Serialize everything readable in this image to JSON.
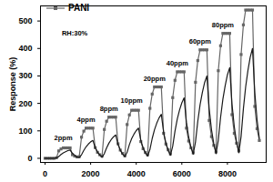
{
  "chart_data": {
    "type": "line",
    "y_label": "Response (%)",
    "x": [
      0,
      100,
      200,
      300,
      400,
      500,
      600,
      700,
      800,
      900,
      1000,
      1100,
      1200,
      1300,
      1400,
      1500,
      1600,
      1700,
      1800,
      1900,
      2000,
      2100,
      2200,
      2300,
      2400,
      2500,
      2600,
      2700,
      2800,
      2900,
      3000,
      3100,
      3200,
      3300,
      3400,
      3500,
      3600,
      3700,
      3800,
      3900,
      4000,
      4100,
      4200,
      4300,
      4400,
      4500,
      4600,
      4700,
      4800,
      4900,
      5000,
      5100,
      5200,
      5300,
      5400,
      5500,
      5600,
      5700,
      5800,
      5900,
      6000,
      6100,
      6200,
      6300,
      6400,
      6500,
      6600,
      6700,
      6800,
      6900,
      7000,
      7100,
      7200,
      7300,
      7400,
      7500,
      7600,
      7700,
      7800,
      7900,
      8000,
      8100,
      8200,
      8300,
      8400,
      8500,
      8600,
      8700,
      8800,
      8900,
      9000,
      9100,
      9200,
      9300,
      9400
    ],
    "series": [
      {
        "name": "PANI",
        "color": "#666666",
        "marker": "square",
        "line_style": "solid",
        "values": [
          0,
          0,
          0,
          0,
          0,
          2,
          27,
          34,
          38,
          38,
          38,
          38,
          13,
          8,
          5,
          6,
          77,
          99,
          110,
          110,
          110,
          110,
          39,
          22,
          13,
          8,
          105,
          135,
          150,
          150,
          150,
          150,
          53,
          30,
          18,
          9,
          123,
          158,
          175,
          175,
          175,
          175,
          61,
          35,
          21,
          13,
          182,
          234,
          260,
          260,
          260,
          260,
          91,
          52,
          31,
          16,
          221,
          284,
          315,
          315,
          315,
          315,
          110,
          63,
          38,
          20,
          277,
          356,
          395,
          395,
          395,
          395,
          138,
          79,
          47,
          23,
          319,
          410,
          455,
          455,
          455,
          455,
          159,
          91,
          55,
          27,
          378,
          486,
          540,
          540,
          540,
          540,
          189,
          108,
          65
        ]
      },
      {
        "name": null,
        "color": "#1a1a1a",
        "marker": "none",
        "line_style": "solid",
        "values": [
          0,
          0,
          0,
          0,
          0,
          2,
          6,
          14,
          20,
          24,
          28,
          30,
          18,
          11,
          5,
          3,
          13,
          29,
          42,
          52,
          60,
          65,
          39,
          23,
          12,
          4,
          17,
          38,
          55,
          68,
          78,
          85,
          51,
          30,
          15,
          6,
          22,
          50,
          72,
          88,
          101,
          110,
          66,
          39,
          20,
          8,
          32,
          72,
          104,
          128,
          147,
          160,
          96,
          56,
          29,
          11,
          44,
          99,
          143,
          176,
          202,
          220,
          132,
          77,
          40,
          15,
          60,
          135,
          195,
          240,
          276,
          300,
          180,
          105,
          54,
          17,
          66,
          149,
          215,
          264,
          304,
          330,
          198,
          116,
          59,
          20,
          80,
          180,
          260,
          320,
          368,
          400,
          240,
          140,
          72
        ]
      }
    ],
    "annotations": [
      {
        "text": "RH:30%",
        "x": 1300,
        "y": 455
      },
      {
        "text": "2ppm",
        "x": 800,
        "y": 75
      },
      {
        "text": "4ppm",
        "x": 1800,
        "y": 140
      },
      {
        "text": "8ppm",
        "x": 2800,
        "y": 180
      },
      {
        "text": "10ppm",
        "x": 3800,
        "y": 210
      },
      {
        "text": "20ppm",
        "x": 4800,
        "y": 290
      },
      {
        "text": "40ppm",
        "x": 5800,
        "y": 345
      },
      {
        "text": "60ppm",
        "x": 6800,
        "y": 425
      },
      {
        "text": "80ppm",
        "x": 7800,
        "y": 485
      }
    ],
    "xlim": [
      -200,
      9700
    ],
    "xticks": [
      0,
      2000,
      4000,
      6000,
      8000
    ],
    "ylim": [
      -15,
      555
    ],
    "yticks": [
      0,
      100,
      200,
      300,
      400,
      500
    ],
    "grid": false,
    "legend": "top-left"
  }
}
